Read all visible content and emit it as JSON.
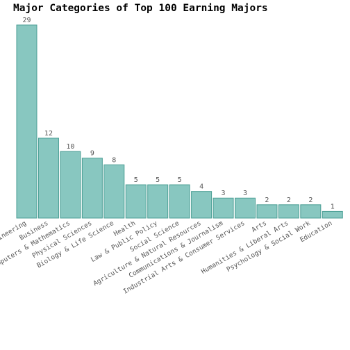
{
  "chart_data": {
    "type": "bar",
    "title": "Major Categories of Top 100 Earning Majors",
    "xlabel": "",
    "ylabel": "",
    "categories": [
      "Engineering",
      "Business",
      "Computers & Mathematics",
      "Physical Sciences",
      "Biology & Life Science",
      "Health",
      "Law & Public Policy",
      "Social Science",
      "Agriculture & Natural Resources",
      "Communications & Journalism",
      "Industrial Arts & Consumer Services",
      "Arts",
      "Humanities & Liberal Arts",
      "Psychology & Social Work",
      "Education"
    ],
    "values": [
      29,
      12,
      10,
      9,
      8,
      5,
      5,
      5,
      4,
      3,
      3,
      2,
      2,
      2,
      1
    ],
    "ylim": [
      0,
      29
    ],
    "grid": false,
    "legend": "none",
    "colors": {
      "bar_fill": "#88c7c0",
      "bar_stroke": "#4a9e94"
    }
  }
}
